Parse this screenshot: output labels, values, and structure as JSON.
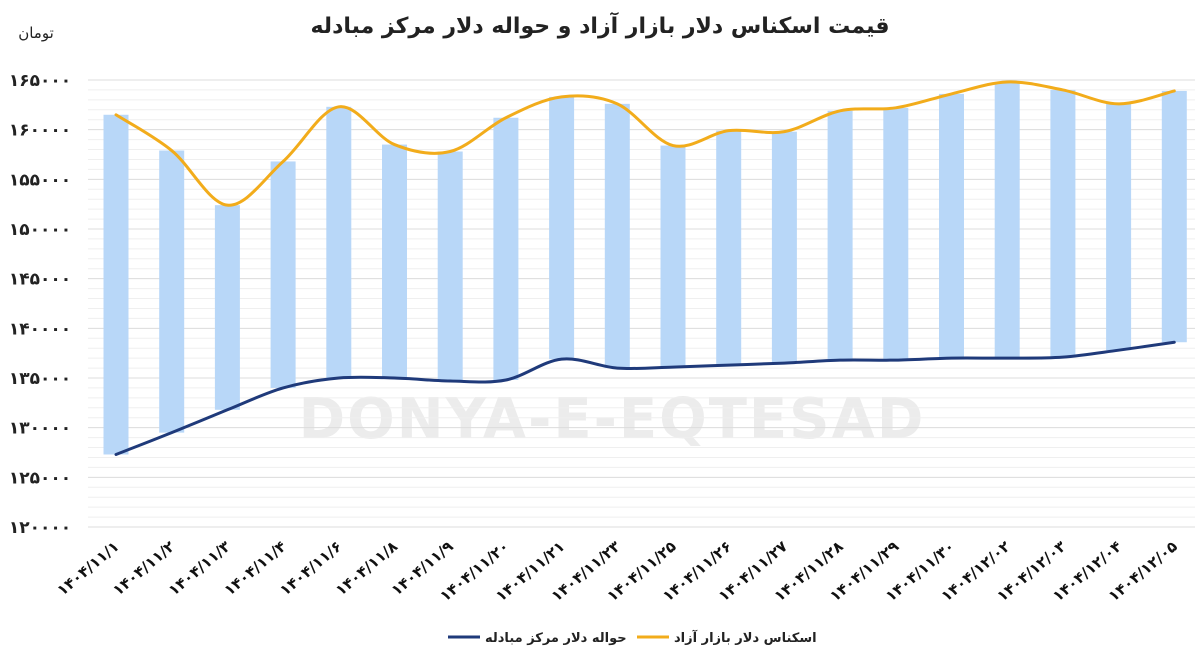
{
  "chart_data": {
    "type": "line",
    "title": "قیمت اسکناس دلار بازار آزاد و حواله دلار مرکز مبادله",
    "ylabel": "تومان",
    "ylim": [
      120000,
      165000
    ],
    "yticks": [
      "۱۶۵۰۰۰",
      "۱۶۰۰۰۰",
      "۱۵۵۰۰۰",
      "۱۵۰۰۰۰",
      "۱۴۵۰۰۰",
      "۱۴۰۰۰۰",
      "۱۳۵۰۰۰",
      "۱۳۰۰۰۰",
      "۱۲۵۰۰۰",
      "۱۲۰۰۰۰"
    ],
    "categories": [
      "۱۴۰۴/۱۱/۱",
      "۱۴۰۴/۱۱/۲",
      "۱۴۰۴/۱۱/۳",
      "۱۴۰۴/۱۱/۴",
      "۱۴۰۴/۱۱/۶",
      "۱۴۰۴/۱۱/۸",
      "۱۴۰۴/۱۱/۹",
      "۱۴۰۴/۱۱/۲۰",
      "۱۴۰۴/۱۱/۲۱",
      "۱۴۰۴/۱۱/۲۳",
      "۱۴۰۴/۱۱/۲۵",
      "۱۴۰۴/۱۱/۲۶",
      "۱۴۰۴/۱۱/۲۷",
      "۱۴۰۴/۱۱/۲۸",
      "۱۴۰۴/۱۱/۲۹",
      "۱۴۰۴/۱۱/۳۰",
      "۱۴۰۴/۱۲/۰۲",
      "۱۴۰۴/۱۲/۰۳",
      "۱۴۰۴/۱۲/۰۴",
      "۱۴۰۴/۱۲/۰۵"
    ],
    "series": [
      {
        "name": "حواله دلار مرکز مبادله",
        "color": "#1f3a7a",
        "values": [
          127300,
          129500,
          131800,
          134000,
          135000,
          135000,
          134700,
          134800,
          136900,
          136000,
          136100,
          136300,
          136500,
          136800,
          136800,
          137000,
          137000,
          137100,
          137800,
          138600
        ]
      },
      {
        "name": "اسکناس دلار بازار آزاد",
        "color": "#f2ac1b",
        "values": [
          161500,
          157900,
          152400,
          156800,
          162300,
          158500,
          157800,
          161200,
          163300,
          162600,
          158400,
          159900,
          159800,
          161900,
          162200,
          163600,
          164800,
          164000,
          162600,
          163900
        ]
      }
    ],
    "range_bars": {
      "color": "#b8d7f8"
    },
    "grid": true,
    "legend_position": "bottom-center",
    "watermark": "DONYA-E-EQTESAD"
  }
}
